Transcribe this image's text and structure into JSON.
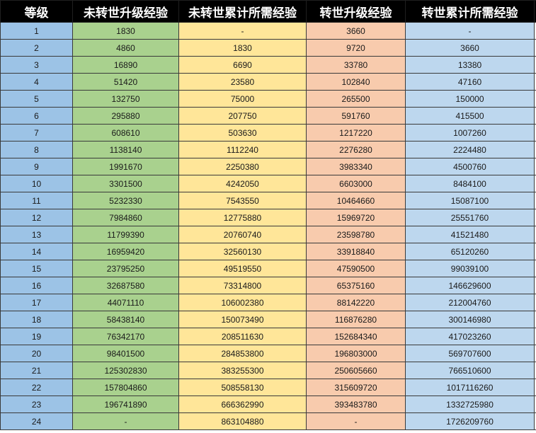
{
  "table": {
    "headers": {
      "level": "等级",
      "non_rebirth_upgrade": "未转世升级经验",
      "non_rebirth_cumulative": "未转世累计所需经验",
      "rebirth_upgrade": "转世升级经验",
      "rebirth_cumulative": "转世累计所需经验"
    },
    "rows": [
      {
        "level": "1",
        "a": "1830",
        "b": "-",
        "c": "3660",
        "d": "-"
      },
      {
        "level": "2",
        "a": "4860",
        "b": "1830",
        "c": "9720",
        "d": "3660"
      },
      {
        "level": "3",
        "a": "16890",
        "b": "6690",
        "c": "33780",
        "d": "13380"
      },
      {
        "level": "4",
        "a": "51420",
        "b": "23580",
        "c": "102840",
        "d": "47160"
      },
      {
        "level": "5",
        "a": "132750",
        "b": "75000",
        "c": "265500",
        "d": "150000"
      },
      {
        "level": "6",
        "a": "295880",
        "b": "207750",
        "c": "591760",
        "d": "415500"
      },
      {
        "level": "7",
        "a": "608610",
        "b": "503630",
        "c": "1217220",
        "d": "1007260"
      },
      {
        "level": "8",
        "a": "1138140",
        "b": "1112240",
        "c": "2276280",
        "d": "2224480"
      },
      {
        "level": "9",
        "a": "1991670",
        "b": "2250380",
        "c": "3983340",
        "d": "4500760"
      },
      {
        "level": "10",
        "a": "3301500",
        "b": "4242050",
        "c": "6603000",
        "d": "8484100"
      },
      {
        "level": "11",
        "a": "5232330",
        "b": "7543550",
        "c": "10464660",
        "d": "15087100"
      },
      {
        "level": "12",
        "a": "7984860",
        "b": "12775880",
        "c": "15969720",
        "d": "25551760"
      },
      {
        "level": "13",
        "a": "11799390",
        "b": "20760740",
        "c": "23598780",
        "d": "41521480"
      },
      {
        "level": "14",
        "a": "16959420",
        "b": "32560130",
        "c": "33918840",
        "d": "65120260"
      },
      {
        "level": "15",
        "a": "23795250",
        "b": "49519550",
        "c": "47590500",
        "d": "99039100"
      },
      {
        "level": "16",
        "a": "32687580",
        "b": "73314800",
        "c": "65375160",
        "d": "146629600"
      },
      {
        "level": "17",
        "a": "44071110",
        "b": "106002380",
        "c": "88142220",
        "d": "212004760"
      },
      {
        "level": "18",
        "a": "58438140",
        "b": "150073490",
        "c": "116876280",
        "d": "300146980"
      },
      {
        "level": "19",
        "a": "76342170",
        "b": "208511630",
        "c": "152684340",
        "d": "417023260"
      },
      {
        "level": "20",
        "a": "98401500",
        "b": "284853800",
        "c": "196803000",
        "d": "569707600"
      },
      {
        "level": "21",
        "a": "125302830",
        "b": "383255300",
        "c": "250605660",
        "d": "766510600"
      },
      {
        "level": "22",
        "a": "157804860",
        "b": "508558130",
        "c": "315609720",
        "d": "1017116260"
      },
      {
        "level": "23",
        "a": "196741890",
        "b": "666362990",
        "c": "393483780",
        "d": "1332725980"
      },
      {
        "level": "24",
        "a": "-",
        "b": "863104880",
        "c": "-",
        "d": "1726209760"
      }
    ]
  },
  "colors": {
    "header_bg": "#000000",
    "header_text": "#ffffff",
    "level_col": "#9cc3e6",
    "non_rebirth_upgrade_col": "#a9d18e",
    "non_rebirth_cumulative_col": "#ffe699",
    "rebirth_upgrade_col": "#f8cbad",
    "rebirth_cumulative_col": "#bdd7ee"
  }
}
